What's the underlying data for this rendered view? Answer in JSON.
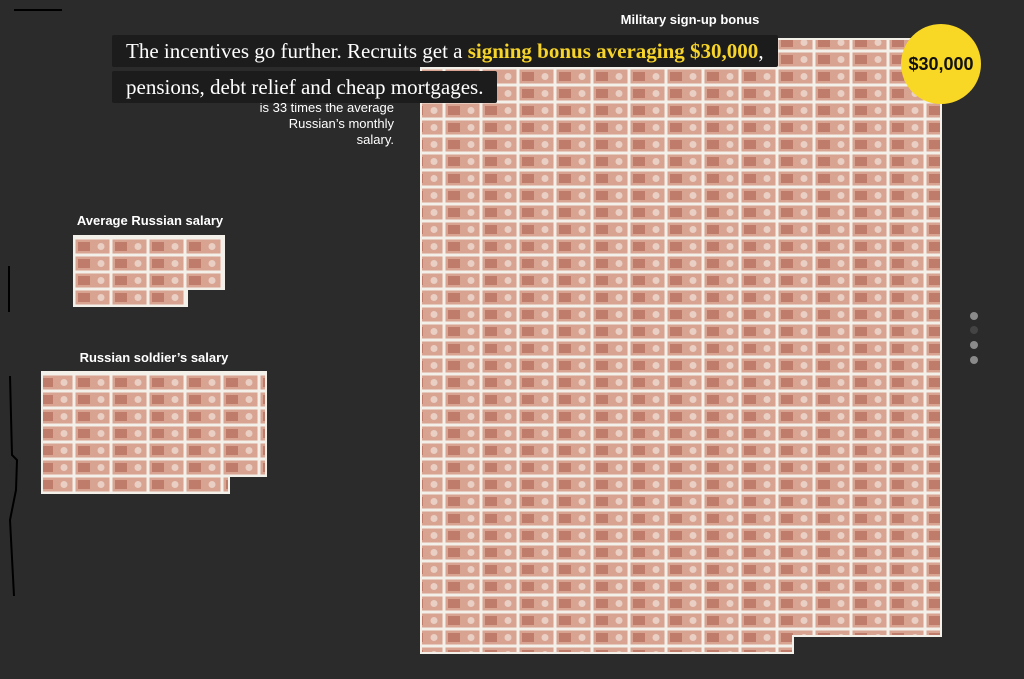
{
  "story": {
    "text_before": "The incentives go further. Recruits get a ",
    "highlight": "signing bonus averaging $30,000",
    "text_after": ", pensions, debt relief and cheap mortgages."
  },
  "badge": "$30,000",
  "labels": {
    "average_salary": "Average Russian salary",
    "soldier_salary": "Russian soldier’s salary",
    "bonus": "Military sign-up bonus",
    "bonus_note": "is 33 times the average Russian’s monthly salary."
  }
}
